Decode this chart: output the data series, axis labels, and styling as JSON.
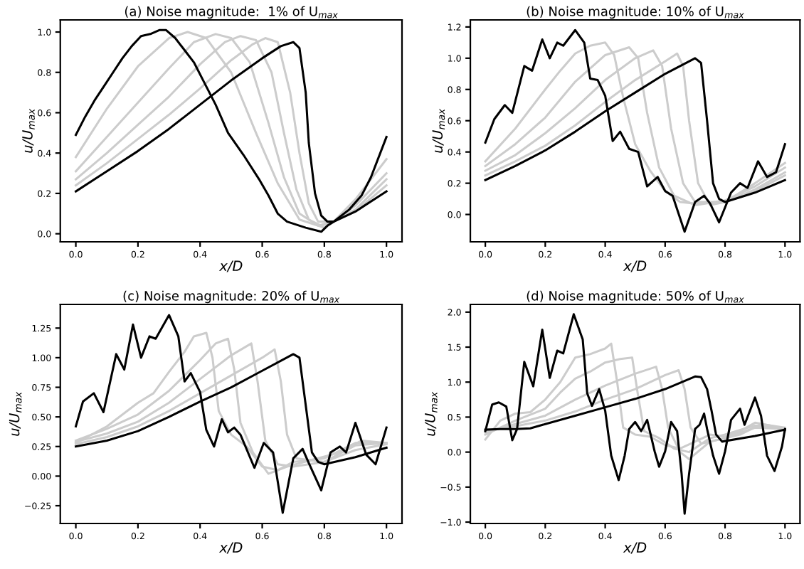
{
  "chart_data": [
    {
      "type": "line",
      "title": "(a) Noise magnitude:  1% of U$_{max}$",
      "xlabel": "x/D",
      "ylabel": "u/U$_{max}$",
      "xlim": [
        -0.05,
        1.05
      ],
      "ylim": [
        -0.04,
        1.06
      ],
      "xticks": [
        {
          "value": 0,
          "label": "0.0"
        },
        {
          "value": 0.2,
          "label": "0.2"
        },
        {
          "value": 0.4,
          "label": "0.4"
        },
        {
          "value": 0.6,
          "label": "0.6"
        },
        {
          "value": 0.8,
          "label": "0.8"
        },
        {
          "value": 1,
          "label": "1.0"
        }
      ],
      "yticks": [
        {
          "value": 0,
          "label": "0.0"
        },
        {
          "value": 0.2,
          "label": "0.2"
        },
        {
          "value": 0.4,
          "label": "0.4"
        },
        {
          "value": 0.6,
          "label": "0.6"
        },
        {
          "value": 0.8,
          "label": "0.8"
        },
        {
          "value": 1,
          "label": "1.0"
        }
      ],
      "series": [
        {
          "color": "#cccccc",
          "x": [
            0,
            0.1,
            0.2,
            0.3,
            0.36,
            0.42,
            0.5,
            0.58,
            0.65,
            0.72,
            0.8,
            0.83,
            0.9,
            1.0
          ],
          "values": [
            0.38,
            0.62,
            0.83,
            0.97,
            1.0,
            0.97,
            0.8,
            0.5,
            0.25,
            0.07,
            0.03,
            0.06,
            0.17,
            0.37
          ]
        },
        {
          "color": "#cccccc",
          "x": [
            0,
            0.1,
            0.2,
            0.3,
            0.38,
            0.45,
            0.5,
            0.56,
            0.62,
            0.67,
            0.72,
            0.78,
            0.83,
            0.9,
            1.0
          ],
          "values": [
            0.31,
            0.48,
            0.65,
            0.82,
            0.95,
            0.99,
            0.97,
            0.85,
            0.55,
            0.28,
            0.1,
            0.04,
            0.06,
            0.14,
            0.3
          ]
        },
        {
          "color": "#cccccc",
          "x": [
            0,
            0.1,
            0.2,
            0.3,
            0.4,
            0.48,
            0.53,
            0.58,
            0.63,
            0.67,
            0.71,
            0.75,
            0.79,
            0.83,
            0.9,
            1.0
          ],
          "values": [
            0.27,
            0.4,
            0.54,
            0.68,
            0.84,
            0.95,
            0.98,
            0.96,
            0.8,
            0.5,
            0.22,
            0.07,
            0.04,
            0.06,
            0.12,
            0.27
          ]
        },
        {
          "color": "#cccccc",
          "x": [
            0,
            0.1,
            0.2,
            0.3,
            0.4,
            0.5,
            0.57,
            0.61,
            0.65,
            0.69,
            0.72,
            0.75,
            0.78,
            0.83,
            0.9,
            1.0
          ],
          "values": [
            0.24,
            0.35,
            0.47,
            0.59,
            0.72,
            0.86,
            0.94,
            0.97,
            0.95,
            0.7,
            0.4,
            0.15,
            0.06,
            0.06,
            0.11,
            0.24
          ]
        },
        {
          "color": "#000000",
          "x": [
            0,
            0.03,
            0.06,
            0.09,
            0.12,
            0.15,
            0.18,
            0.21,
            0.24,
            0.27,
            0.29,
            0.32,
            0.35,
            0.38,
            0.41,
            0.45,
            0.49,
            0.54,
            0.59,
            0.62,
            0.65,
            0.68,
            0.74,
            0.79,
            0.81,
            0.83,
            0.88,
            0.92,
            0.95,
            1.0
          ],
          "values": [
            0.49,
            0.58,
            0.66,
            0.73,
            0.8,
            0.87,
            0.93,
            0.98,
            0.99,
            1.01,
            1.01,
            0.97,
            0.91,
            0.85,
            0.76,
            0.64,
            0.5,
            0.39,
            0.27,
            0.19,
            0.1,
            0.06,
            0.03,
            0.01,
            0.04,
            0.06,
            0.12,
            0.19,
            0.28,
            0.48
          ]
        },
        {
          "color": "#000000",
          "x": [
            0,
            0.1,
            0.2,
            0.3,
            0.4,
            0.5,
            0.6,
            0.66,
            0.7,
            0.72,
            0.74,
            0.75,
            0.77,
            0.79,
            0.81,
            0.83,
            0.9,
            1.0
          ],
          "values": [
            0.21,
            0.31,
            0.41,
            0.52,
            0.64,
            0.76,
            0.87,
            0.93,
            0.95,
            0.92,
            0.7,
            0.45,
            0.2,
            0.09,
            0.06,
            0.06,
            0.11,
            0.21
          ]
        }
      ]
    },
    {
      "type": "line",
      "title": "(b) Noise magnitude: 10% of U$_{max}$",
      "xlabel": "x/D",
      "ylabel": "u/U$_{max}$",
      "xlim": [
        -0.05,
        1.05
      ],
      "ylim": [
        -0.175,
        1.245
      ],
      "xticks": [
        {
          "value": 0,
          "label": "0.0"
        },
        {
          "value": 0.2,
          "label": "0.2"
        },
        {
          "value": 0.4,
          "label": "0.4"
        },
        {
          "value": 0.6,
          "label": "0.6"
        },
        {
          "value": 0.8,
          "label": "0.8"
        },
        {
          "value": 1,
          "label": "1.0"
        }
      ],
      "yticks": [
        {
          "value": 0,
          "label": "0.0"
        },
        {
          "value": 0.2,
          "label": "0.2"
        },
        {
          "value": 0.4,
          "label": "0.4"
        },
        {
          "value": 0.6,
          "label": "0.6"
        },
        {
          "value": 0.8,
          "label": "0.8"
        },
        {
          "value": 1,
          "label": "1.0"
        },
        {
          "value": 1.2,
          "label": "1.2"
        }
      ],
      "series": [
        {
          "color": "#cccccc",
          "x": [
            0,
            0.1,
            0.2,
            0.25,
            0.3,
            0.35,
            0.4,
            0.43,
            0.46,
            0.5,
            0.55,
            0.6,
            0.65,
            0.7,
            0.8,
            0.9,
            1.0
          ],
          "values": [
            0.34,
            0.55,
            0.8,
            0.92,
            1.03,
            1.08,
            1.1,
            1.02,
            0.75,
            0.45,
            0.28,
            0.15,
            0.08,
            0.07,
            0.08,
            0.2,
            0.33
          ]
        },
        {
          "color": "#cccccc",
          "x": [
            0,
            0.1,
            0.2,
            0.3,
            0.4,
            0.48,
            0.51,
            0.54,
            0.58,
            0.63,
            0.7,
            0.8,
            0.9,
            1.0
          ],
          "values": [
            0.31,
            0.45,
            0.62,
            0.85,
            1.02,
            1.07,
            1.0,
            0.65,
            0.3,
            0.12,
            0.06,
            0.09,
            0.18,
            0.3
          ]
        },
        {
          "color": "#cccccc",
          "x": [
            0,
            0.1,
            0.2,
            0.3,
            0.4,
            0.5,
            0.56,
            0.59,
            0.62,
            0.66,
            0.7,
            0.8,
            0.9,
            1.0
          ],
          "values": [
            0.28,
            0.38,
            0.52,
            0.68,
            0.86,
            1.0,
            1.05,
            0.95,
            0.55,
            0.2,
            0.08,
            0.08,
            0.16,
            0.27
          ]
        },
        {
          "color": "#cccccc",
          "x": [
            0,
            0.1,
            0.2,
            0.3,
            0.4,
            0.5,
            0.6,
            0.64,
            0.66,
            0.68,
            0.71,
            0.75,
            0.8,
            0.9,
            1.0
          ],
          "values": [
            0.25,
            0.34,
            0.44,
            0.57,
            0.72,
            0.86,
            0.98,
            1.03,
            0.95,
            0.6,
            0.2,
            0.06,
            0.08,
            0.15,
            0.25
          ]
        },
        {
          "color": "#000000",
          "x": [
            0,
            0.03,
            0.065,
            0.09,
            0.13,
            0.156,
            0.19,
            0.215,
            0.24,
            0.26,
            0.3,
            0.33,
            0.35,
            0.375,
            0.4,
            0.425,
            0.45,
            0.48,
            0.51,
            0.54,
            0.575,
            0.6,
            0.625,
            0.665,
            0.7,
            0.73,
            0.75,
            0.78,
            0.82,
            0.85,
            0.875,
            0.91,
            0.94,
            0.97,
            1.0
          ],
          "values": [
            0.46,
            0.61,
            0.7,
            0.65,
            0.95,
            0.92,
            1.12,
            1.0,
            1.1,
            1.08,
            1.18,
            1.1,
            0.87,
            0.86,
            0.76,
            0.47,
            0.53,
            0.42,
            0.4,
            0.18,
            0.24,
            0.15,
            0.12,
            -0.11,
            0.08,
            0.12,
            0.07,
            -0.05,
            0.14,
            0.2,
            0.17,
            0.34,
            0.24,
            0.27,
            0.45
          ]
        },
        {
          "color": "#000000",
          "x": [
            0,
            0.1,
            0.2,
            0.3,
            0.4,
            0.5,
            0.6,
            0.7,
            0.72,
            0.74,
            0.76,
            0.78,
            0.8,
            0.9,
            1.0
          ],
          "values": [
            0.22,
            0.31,
            0.41,
            0.53,
            0.66,
            0.78,
            0.9,
            1.0,
            0.97,
            0.6,
            0.2,
            0.1,
            0.08,
            0.14,
            0.22
          ]
        }
      ]
    },
    {
      "type": "line",
      "title": "(c) Noise magnitude: 20% of U$_{max}$",
      "xlabel": "x/D",
      "ylabel": "u/U$_{max}$",
      "xlim": [
        -0.05,
        1.05
      ],
      "ylim": [
        -0.4,
        1.45
      ],
      "xticks": [
        {
          "value": 0,
          "label": "0.0"
        },
        {
          "value": 0.2,
          "label": "0.2"
        },
        {
          "value": 0.4,
          "label": "0.4"
        },
        {
          "value": 0.6,
          "label": "0.6"
        },
        {
          "value": 0.8,
          "label": "0.8"
        },
        {
          "value": 1,
          "label": "1.0"
        }
      ],
      "yticks": [
        {
          "value": -0.25,
          "label": "−0.25"
        },
        {
          "value": 0,
          "label": "0.00"
        },
        {
          "value": 0.25,
          "label": "0.25"
        },
        {
          "value": 0.5,
          "label": "0.50"
        },
        {
          "value": 0.75,
          "label": "0.75"
        },
        {
          "value": 1,
          "label": "1.00"
        },
        {
          "value": 1.25,
          "label": "1.25"
        }
      ],
      "series": [
        {
          "color": "#cccccc",
          "x": [
            0,
            0.1,
            0.2,
            0.25,
            0.3,
            0.35,
            0.38,
            0.42,
            0.44,
            0.46,
            0.5,
            0.55,
            0.6,
            0.65,
            0.7,
            0.8,
            0.9,
            1.0
          ],
          "values": [
            0.28,
            0.42,
            0.62,
            0.7,
            0.88,
            1.05,
            1.18,
            1.21,
            1.0,
            0.55,
            0.35,
            0.25,
            0.08,
            0.05,
            0.12,
            0.15,
            0.28,
            0.28
          ]
        },
        {
          "color": "#cccccc",
          "x": [
            0,
            0.1,
            0.2,
            0.3,
            0.4,
            0.45,
            0.49,
            0.51,
            0.53,
            0.57,
            0.62,
            0.68,
            0.75,
            0.85,
            0.92,
            1.0
          ],
          "values": [
            0.3,
            0.4,
            0.52,
            0.72,
            0.98,
            1.12,
            1.16,
            0.9,
            0.45,
            0.2,
            0.02,
            0.08,
            0.13,
            0.2,
            0.3,
            0.28
          ]
        },
        {
          "color": "#cccccc",
          "x": [
            0,
            0.1,
            0.2,
            0.3,
            0.4,
            0.5,
            0.565,
            0.585,
            0.61,
            0.65,
            0.7,
            0.8,
            0.9,
            1.0
          ],
          "values": [
            0.29,
            0.36,
            0.46,
            0.62,
            0.82,
            1.02,
            1.12,
            0.8,
            0.3,
            0.1,
            0.08,
            0.12,
            0.26,
            0.28
          ]
        },
        {
          "color": "#cccccc",
          "x": [
            0,
            0.1,
            0.2,
            0.3,
            0.4,
            0.5,
            0.6,
            0.64,
            0.66,
            0.68,
            0.71,
            0.8,
            0.9,
            1.0
          ],
          "values": [
            0.27,
            0.33,
            0.42,
            0.55,
            0.7,
            0.85,
            1.0,
            1.07,
            0.8,
            0.35,
            0.15,
            0.12,
            0.22,
            0.27
          ]
        },
        {
          "color": "#000000",
          "x": [
            0,
            0.023,
            0.058,
            0.089,
            0.13,
            0.156,
            0.184,
            0.21,
            0.237,
            0.257,
            0.3,
            0.33,
            0.35,
            0.37,
            0.4,
            0.42,
            0.445,
            0.47,
            0.49,
            0.51,
            0.53,
            0.575,
            0.605,
            0.635,
            0.666,
            0.7,
            0.73,
            0.75,
            0.79,
            0.82,
            0.85,
            0.87,
            0.9,
            0.935,
            0.965,
            1.0
          ],
          "values": [
            0.42,
            0.63,
            0.7,
            0.54,
            1.03,
            0.9,
            1.28,
            1.0,
            1.18,
            1.16,
            1.36,
            1.18,
            0.8,
            0.87,
            0.71,
            0.39,
            0.25,
            0.48,
            0.37,
            0.41,
            0.35,
            0.07,
            0.28,
            0.2,
            -0.31,
            0.15,
            0.23,
            0.11,
            -0.12,
            0.2,
            0.25,
            0.2,
            0.45,
            0.18,
            0.1,
            0.41
          ]
        },
        {
          "color": "#000000",
          "x": [
            0,
            0.1,
            0.2,
            0.3,
            0.4,
            0.5,
            0.6,
            0.7,
            0.72,
            0.74,
            0.76,
            0.78,
            0.8,
            0.9,
            1.0
          ],
          "values": [
            0.25,
            0.3,
            0.38,
            0.5,
            0.63,
            0.75,
            0.89,
            1.03,
            1.0,
            0.6,
            0.2,
            0.12,
            0.1,
            0.16,
            0.24
          ]
        }
      ]
    },
    {
      "type": "line",
      "title": "(d) Noise magnitude: 50% of U$_{max}$",
      "xlabel": "x/D",
      "ylabel": "u/U$_{max}$",
      "xlim": [
        -0.05,
        1.05
      ],
      "ylim": [
        -1.02,
        2.11
      ],
      "xticks": [
        {
          "value": 0,
          "label": "0.0"
        },
        {
          "value": 0.2,
          "label": "0.2"
        },
        {
          "value": 0.4,
          "label": "0.4"
        },
        {
          "value": 0.6,
          "label": "0.6"
        },
        {
          "value": 0.8,
          "label": "0.8"
        },
        {
          "value": 1,
          "label": "1.0"
        }
      ],
      "yticks": [
        {
          "value": -1,
          "label": "−1.0"
        },
        {
          "value": -0.5,
          "label": "−0.5"
        },
        {
          "value": 0,
          "label": "0.0"
        },
        {
          "value": 0.5,
          "label": "0.5"
        },
        {
          "value": 1,
          "label": "1.0"
        },
        {
          "value": 1.5,
          "label": "1.5"
        },
        {
          "value": 2,
          "label": "2.0"
        }
      ],
      "series": [
        {
          "color": "#cccccc",
          "x": [
            0,
            0.05,
            0.1,
            0.15,
            0.2,
            0.25,
            0.3,
            0.35,
            0.4,
            0.42,
            0.44,
            0.46,
            0.5,
            0.55,
            0.6,
            0.65,
            0.7,
            0.75,
            0.8,
            0.85,
            0.9,
            0.95,
            1.0
          ],
          "values": [
            0.18,
            0.45,
            0.55,
            0.57,
            0.75,
            1.0,
            1.35,
            1.4,
            1.48,
            1.55,
            1.0,
            0.35,
            0.25,
            0.22,
            0.1,
            0.05,
            0.15,
            0.25,
            0.22,
            0.3,
            0.42,
            0.38,
            0.3
          ]
        },
        {
          "color": "#cccccc",
          "x": [
            0,
            0.1,
            0.2,
            0.25,
            0.3,
            0.35,
            0.4,
            0.45,
            0.49,
            0.51,
            0.53,
            0.58,
            0.63,
            0.68,
            0.75,
            0.8,
            0.9,
            1.0
          ],
          "values": [
            0.25,
            0.45,
            0.62,
            0.85,
            1.05,
            1.15,
            1.28,
            1.33,
            1.35,
            0.8,
            0.3,
            0.2,
            0.05,
            0.0,
            0.2,
            0.25,
            0.38,
            0.33
          ]
        },
        {
          "color": "#cccccc",
          "x": [
            0,
            0.1,
            0.2,
            0.3,
            0.4,
            0.5,
            0.57,
            0.59,
            0.61,
            0.65,
            0.68,
            0.75,
            0.85,
            0.92,
            1.0
          ],
          "values": [
            0.28,
            0.4,
            0.52,
            0.75,
            0.95,
            1.12,
            1.22,
            0.9,
            0.35,
            0.0,
            -0.1,
            0.15,
            0.25,
            0.4,
            0.35
          ]
        },
        {
          "color": "#cccccc",
          "x": [
            0,
            0.1,
            0.2,
            0.3,
            0.4,
            0.5,
            0.6,
            0.645,
            0.665,
            0.685,
            0.72,
            0.8,
            0.9,
            1.0
          ],
          "values": [
            0.3,
            0.37,
            0.45,
            0.58,
            0.75,
            0.9,
            1.1,
            1.17,
            0.9,
            0.35,
            0.12,
            0.2,
            0.35,
            0.33
          ]
        },
        {
          "color": "#000000",
          "x": [
            0,
            0.023,
            0.045,
            0.07,
            0.09,
            0.106,
            0.13,
            0.16,
            0.19,
            0.215,
            0.24,
            0.26,
            0.295,
            0.325,
            0.34,
            0.356,
            0.38,
            0.4,
            0.42,
            0.445,
            0.465,
            0.48,
            0.5,
            0.52,
            0.54,
            0.565,
            0.58,
            0.6,
            0.62,
            0.64,
            0.655,
            0.665,
            0.68,
            0.7,
            0.715,
            0.73,
            0.74,
            0.76,
            0.78,
            0.8,
            0.82,
            0.85,
            0.865,
            0.9,
            0.92,
            0.94,
            0.965,
            0.99,
            1.0
          ],
          "values": [
            0.3,
            0.68,
            0.71,
            0.65,
            0.17,
            0.33,
            1.29,
            0.94,
            1.75,
            1.06,
            1.45,
            1.41,
            1.97,
            1.61,
            0.84,
            0.66,
            0.9,
            0.59,
            -0.05,
            -0.4,
            -0.05,
            0.33,
            0.43,
            0.3,
            0.46,
            0.01,
            -0.21,
            0.01,
            0.43,
            0.3,
            -0.31,
            -0.88,
            -0.31,
            0.33,
            0.39,
            0.55,
            0.33,
            -0.05,
            -0.31,
            0.01,
            0.46,
            0.62,
            0.39,
            0.78,
            0.52,
            -0.05,
            -0.27,
            0.08,
            0.33
          ]
        },
        {
          "color": "#000000",
          "x": [
            0,
            0.05,
            0.1,
            0.15,
            0.2,
            0.3,
            0.4,
            0.5,
            0.6,
            0.7,
            0.72,
            0.74,
            0.755,
            0.77,
            0.79,
            0.9,
            1.0
          ],
          "values": [
            0.32,
            0.33,
            0.33,
            0.34,
            0.4,
            0.52,
            0.64,
            0.76,
            0.9,
            1.08,
            1.07,
            0.9,
            0.59,
            0.25,
            0.15,
            0.23,
            0.32
          ]
        }
      ]
    }
  ]
}
